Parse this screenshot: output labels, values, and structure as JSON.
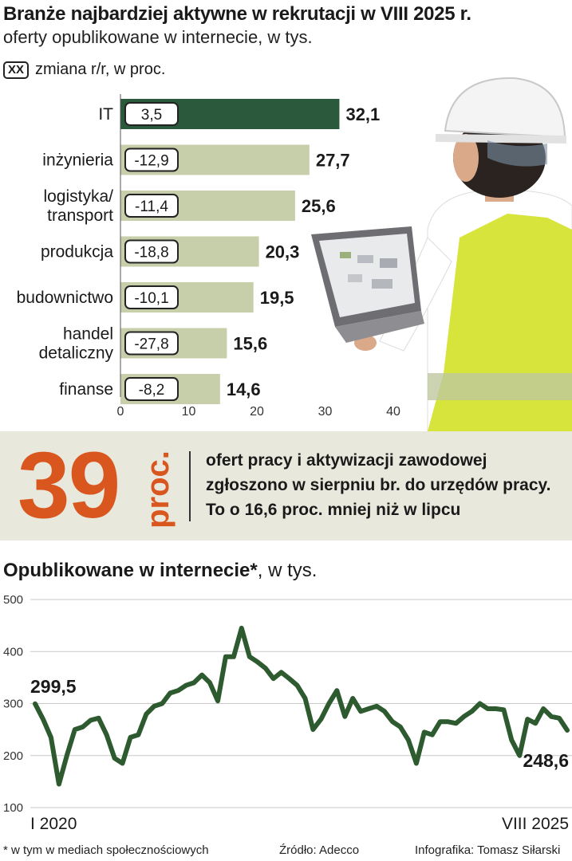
{
  "header": {
    "title": "Branże najbardziej aktywne w rekrutacji w VIII 2025 r.",
    "subtitle": "oferty opublikowane w internecie, w tys.",
    "legend_box": "XX",
    "legend_label": "zmiana r/r, w proc."
  },
  "stat": {
    "value": "39",
    "unit": "proc.",
    "text": "ofert pracy i aktywizacji zawodowej zgłoszono w sierpniu br. do urzędów pracy. To o 16,6 proc. mniej niż w lipcu"
  },
  "line_header": {
    "title_bold": "Opublikowane  w internecie*",
    "title_rest": ", w tys."
  },
  "footer": {
    "footnote": "* w tym w mediach społecznościowych",
    "source": "Źródło: Adecco",
    "credit": "Infografika: Tomasz Siłarski"
  },
  "colors": {
    "bar_dark": "#2a5a3b",
    "bar_light": "#c7cfaa",
    "line": "#2e5a2f",
    "accent": "#d9571f",
    "band": "#e8e8dc"
  },
  "chart_data": [
    {
      "type": "bar",
      "orientation": "horizontal",
      "categories": [
        [
          "IT"
        ],
        [
          "inżynieria"
        ],
        [
          "logistyka/",
          "transport"
        ],
        [
          "produkcja"
        ],
        [
          "budownictwo"
        ],
        [
          "handel",
          "detaliczny"
        ],
        [
          "finanse"
        ]
      ],
      "values": [
        32.1,
        27.7,
        25.6,
        20.3,
        19.5,
        15.6,
        14.6
      ],
      "value_labels": [
        "32,1",
        "27,7",
        "25,6",
        "20,3",
        "19,5",
        "15,6",
        "14,6"
      ],
      "yoy_change": [
        "3,5",
        "-12,9",
        "-11,4",
        "-18,8",
        "-10,1",
        "-27,8",
        "-8,2"
      ],
      "highlight_index": 0,
      "xlim": [
        0,
        40
      ],
      "xticks": [
        0,
        10,
        20,
        30,
        40
      ],
      "xtick_labels": [
        "0",
        "10",
        "20",
        "30",
        "40"
      ],
      "grid": false
    },
    {
      "type": "line",
      "x_start": "I 2020",
      "x_end": "VIII 2025",
      "ylim": [
        100,
        500
      ],
      "yticks": [
        100,
        200,
        300,
        400,
        500
      ],
      "ytick_labels": [
        "100",
        "200",
        "300",
        "400",
        "500"
      ],
      "grid": true,
      "annotations": [
        {
          "index": 0,
          "label": "299,5"
        },
        {
          "index": 67,
          "label": "248,6"
        }
      ],
      "values": [
        299.5,
        270,
        235,
        145,
        200,
        250,
        255,
        268,
        272,
        240,
        195,
        185,
        235,
        240,
        280,
        295,
        300,
        320,
        325,
        335,
        340,
        355,
        340,
        305,
        390,
        390,
        445,
        390,
        380,
        368,
        348,
        360,
        348,
        335,
        310,
        250,
        270,
        300,
        325,
        275,
        310,
        285,
        290,
        295,
        285,
        265,
        255,
        230,
        185,
        245,
        240,
        265,
        265,
        262,
        275,
        285,
        300,
        290,
        290,
        288,
        230,
        200,
        270,
        262,
        290,
        275,
        272,
        248.6
      ]
    }
  ]
}
